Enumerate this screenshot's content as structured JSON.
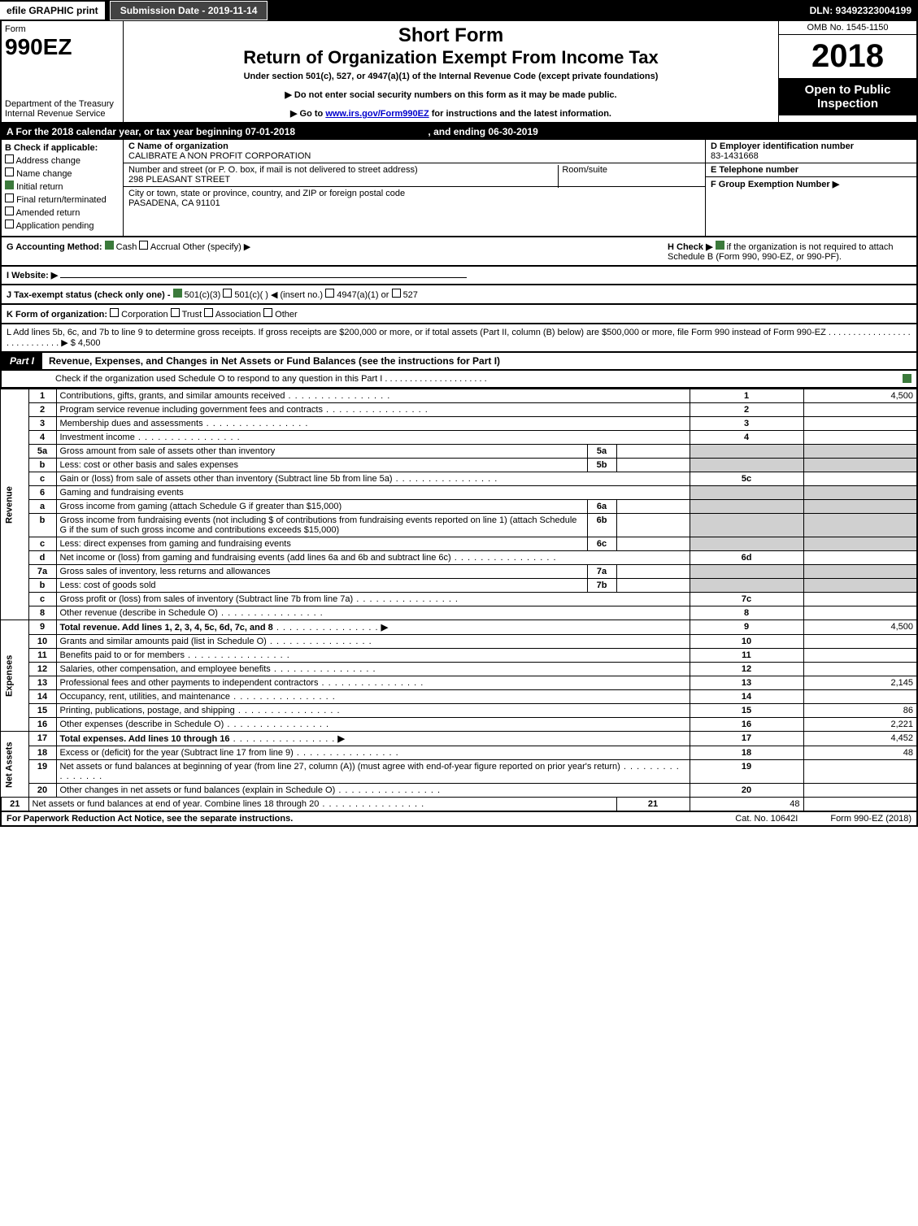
{
  "topbar": {
    "efile": "efile GRAPHIC print",
    "submission": "Submission Date - 2019-11-14",
    "dln": "DLN: 93492323004199"
  },
  "header": {
    "form_label": "Form",
    "form_number": "990EZ",
    "dept1": "Department of the Treasury",
    "dept2": "Internal Revenue Service",
    "short": "Short Form",
    "title": "Return of Organization Exempt From Income Tax",
    "sub": "Under section 501(c), 527, or 4947(a)(1) of the Internal Revenue Code (except private foundations)",
    "note1": "▶ Do not enter social security numbers on this form as it may be made public.",
    "note2_pre": "▶ Go to ",
    "note2_link": "www.irs.gov/Form990EZ",
    "note2_post": " for instructions and the latest information.",
    "omb": "OMB No. 1545-1150",
    "year": "2018",
    "open": "Open to Public Inspection"
  },
  "period": {
    "text_a": "A  For the 2018 calendar year, or tax year beginning 07-01-2018",
    "text_b": ", and ending 06-30-2019"
  },
  "boxB": {
    "heading": "B  Check if applicable:",
    "items": [
      {
        "label": "Address change",
        "checked": false
      },
      {
        "label": "Name change",
        "checked": false
      },
      {
        "label": "Initial return",
        "checked": true
      },
      {
        "label": "Final return/terminated",
        "checked": false
      },
      {
        "label": "Amended return",
        "checked": false
      },
      {
        "label": "Application pending",
        "checked": false
      }
    ]
  },
  "boxC": {
    "c_label": "C Name of organization",
    "c_value": "CALIBRATE A NON PROFIT CORPORATION",
    "street_label": "Number and street (or P. O. box, if mail is not delivered to street address)",
    "street_value": "298 PLEASANT STREET",
    "room_label": "Room/suite",
    "city_label": "City or town, state or province, country, and ZIP or foreign postal code",
    "city_value": "PASADENA, CA  91101"
  },
  "boxD": {
    "d_label": "D Employer identification number",
    "d_value": "83-1431668",
    "e_label": "E Telephone number",
    "e_value": "",
    "f_label": "F Group Exemption Number  ▶",
    "f_value": ""
  },
  "lineG": {
    "label": "G Accounting Method:",
    "cash": "Cash",
    "accrual": "Accrual",
    "other": "Other (specify) ▶"
  },
  "lineH": {
    "label": "H  Check ▶ ",
    "text": " if the organization is not required to attach Schedule B (Form 990, 990-EZ, or 990-PF)."
  },
  "lineI": {
    "label": "I Website: ▶"
  },
  "lineJ": {
    "label": "J Tax-exempt status (check only one) - ",
    "a": "501(c)(3)",
    "b": "501(c)(  ) ◀ (insert no.)",
    "c": "4947(a)(1) or",
    "d": "527"
  },
  "lineK": {
    "label": "K Form of organization:",
    "opts": [
      "Corporation",
      "Trust",
      "Association",
      "Other"
    ]
  },
  "lineL": {
    "text": "L Add lines 5b, 6c, and 7b to line 9 to determine gross receipts. If gross receipts are $200,000 or more, or if total assets (Part II, column (B) below) are $500,000 or more, file Form 990 instead of Form 990-EZ  .  .  .  .  .  .  .  .  .  .  .  .  .  .  .  .  .  .  .  .  .  .  .  .  .  .  .  .  ▶ $ 4,500"
  },
  "part1": {
    "tag": "Part I",
    "title": "Revenue, Expenses, and Changes in Net Assets or Fund Balances (see the instructions for Part I)",
    "check_line": "Check if the organization used Schedule O to respond to any question in this Part I  .  .  .  .  .  .  .  .  .  .  .  .  .  .  .  .  .  .  .  .  .",
    "rot_rev": "Revenue",
    "rot_exp": "Expenses",
    "rot_net": "Net Assets"
  },
  "rows": [
    {
      "n": "1",
      "desc": "Contributions, gifts, grants, and similar amounts received",
      "ln": "1",
      "amt": "4,500"
    },
    {
      "n": "2",
      "desc": "Program service revenue including government fees and contracts",
      "ln": "2",
      "amt": ""
    },
    {
      "n": "3",
      "desc": "Membership dues and assessments",
      "ln": "3",
      "amt": ""
    },
    {
      "n": "4",
      "desc": "Investment income",
      "ln": "4",
      "amt": ""
    },
    {
      "n": "5a",
      "desc": "Gross amount from sale of assets other than inventory",
      "mini": "5a"
    },
    {
      "n": "b",
      "desc": "Less: cost or other basis and sales expenses",
      "mini": "5b"
    },
    {
      "n": "c",
      "desc": "Gain or (loss) from sale of assets other than inventory (Subtract line 5b from line 5a)",
      "ln": "5c",
      "amt": ""
    },
    {
      "n": "6",
      "desc": "Gaming and fundraising events"
    },
    {
      "n": "a",
      "desc": "Gross income from gaming (attach Schedule G if greater than $15,000)",
      "mini": "6a"
    },
    {
      "n": "b",
      "desc": "Gross income from fundraising events (not including $                    of contributions from fundraising events reported on line 1) (attach Schedule G if the sum of such gross income and contributions exceeds $15,000)",
      "mini": "6b"
    },
    {
      "n": "c",
      "desc": "Less: direct expenses from gaming and fundraising events",
      "mini": "6c"
    },
    {
      "n": "d",
      "desc": "Net income or (loss) from gaming and fundraising events (add lines 6a and 6b and subtract line 6c)",
      "ln": "6d",
      "amt": ""
    },
    {
      "n": "7a",
      "desc": "Gross sales of inventory, less returns and allowances",
      "mini": "7a"
    },
    {
      "n": "b",
      "desc": "Less: cost of goods sold",
      "mini": "7b"
    },
    {
      "n": "c",
      "desc": "Gross profit or (loss) from sales of inventory (Subtract line 7b from line 7a)",
      "ln": "7c",
      "amt": ""
    },
    {
      "n": "8",
      "desc": "Other revenue (describe in Schedule O)",
      "ln": "8",
      "amt": ""
    },
    {
      "n": "9",
      "desc": "Total revenue. Add lines 1, 2, 3, 4, 5c, 6d, 7c, and 8",
      "ln": "9",
      "amt": "4,500",
      "bold": true,
      "arrow": true
    },
    {
      "n": "10",
      "desc": "Grants and similar amounts paid (list in Schedule O)",
      "ln": "10",
      "amt": ""
    },
    {
      "n": "11",
      "desc": "Benefits paid to or for members",
      "ln": "11",
      "amt": ""
    },
    {
      "n": "12",
      "desc": "Salaries, other compensation, and employee benefits",
      "ln": "12",
      "amt": ""
    },
    {
      "n": "13",
      "desc": "Professional fees and other payments to independent contractors",
      "ln": "13",
      "amt": "2,145"
    },
    {
      "n": "14",
      "desc": "Occupancy, rent, utilities, and maintenance",
      "ln": "14",
      "amt": ""
    },
    {
      "n": "15",
      "desc": "Printing, publications, postage, and shipping",
      "ln": "15",
      "amt": "86"
    },
    {
      "n": "16",
      "desc": "Other expenses (describe in Schedule O)",
      "ln": "16",
      "amt": "2,221"
    },
    {
      "n": "17",
      "desc": "Total expenses. Add lines 10 through 16",
      "ln": "17",
      "amt": "4,452",
      "bold": true,
      "arrow": true
    },
    {
      "n": "18",
      "desc": "Excess or (deficit) for the year (Subtract line 17 from line 9)",
      "ln": "18",
      "amt": "48"
    },
    {
      "n": "19",
      "desc": "Net assets or fund balances at beginning of year (from line 27, column (A)) (must agree with end-of-year figure reported on prior year's return)",
      "ln": "19",
      "amt": ""
    },
    {
      "n": "20",
      "desc": "Other changes in net assets or fund balances (explain in Schedule O)",
      "ln": "20",
      "amt": ""
    },
    {
      "n": "21",
      "desc": "Net assets or fund balances at end of year. Combine lines 18 through 20",
      "ln": "21",
      "amt": "48"
    }
  ],
  "footer": {
    "pra": "For Paperwork Reduction Act Notice, see the separate instructions.",
    "cat": "Cat. No. 10642I",
    "form": "Form 990-EZ (2018)"
  },
  "colors": {
    "black": "#000000",
    "white": "#ffffff",
    "darkgrey": "#434343",
    "grey": "#d0d0d0",
    "green": "#3b7a3b",
    "link": "#0000cc"
  }
}
